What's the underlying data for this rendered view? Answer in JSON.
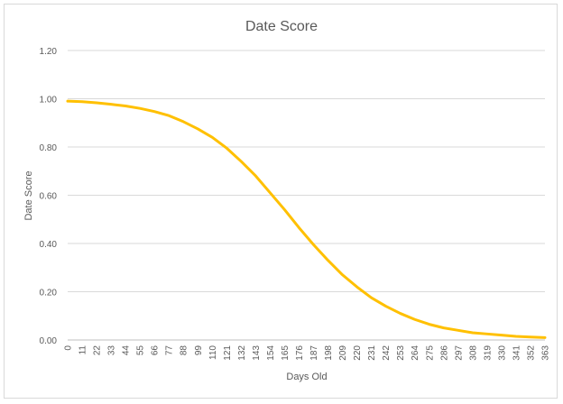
{
  "chart_data": {
    "type": "line",
    "title": "Date Score",
    "xlabel": "Days Old",
    "ylabel": "Date Score",
    "ylim": [
      0,
      1.2
    ],
    "y_ticks": [
      "0.00",
      "0.20",
      "0.40",
      "0.60",
      "0.80",
      "1.00",
      "1.20"
    ],
    "x_tick_labels": [
      "0",
      "11",
      "22",
      "33",
      "44",
      "55",
      "66",
      "77",
      "88",
      "99",
      "110",
      "121",
      "132",
      "143",
      "154",
      "165",
      "176",
      "187",
      "198",
      "209",
      "220",
      "231",
      "242",
      "253",
      "264",
      "275",
      "286",
      "297",
      "308",
      "319",
      "330",
      "341",
      "352",
      "363"
    ],
    "grid": "horizontal",
    "legend": "none",
    "series": [
      {
        "color": "#FFC000",
        "x": [
          0,
          11,
          22,
          33,
          44,
          55,
          66,
          77,
          88,
          99,
          110,
          121,
          132,
          143,
          154,
          165,
          176,
          187,
          198,
          209,
          220,
          231,
          242,
          253,
          264,
          275,
          286,
          297,
          308,
          319,
          330,
          341,
          352,
          363
        ],
        "values": [
          0.99,
          0.988,
          0.983,
          0.977,
          0.97,
          0.96,
          0.947,
          0.93,
          0.905,
          0.875,
          0.84,
          0.795,
          0.74,
          0.68,
          0.61,
          0.54,
          0.465,
          0.395,
          0.33,
          0.27,
          0.22,
          0.175,
          0.14,
          0.11,
          0.085,
          0.065,
          0.05,
          0.04,
          0.03,
          0.025,
          0.02,
          0.015,
          0.012,
          0.01
        ]
      }
    ]
  }
}
